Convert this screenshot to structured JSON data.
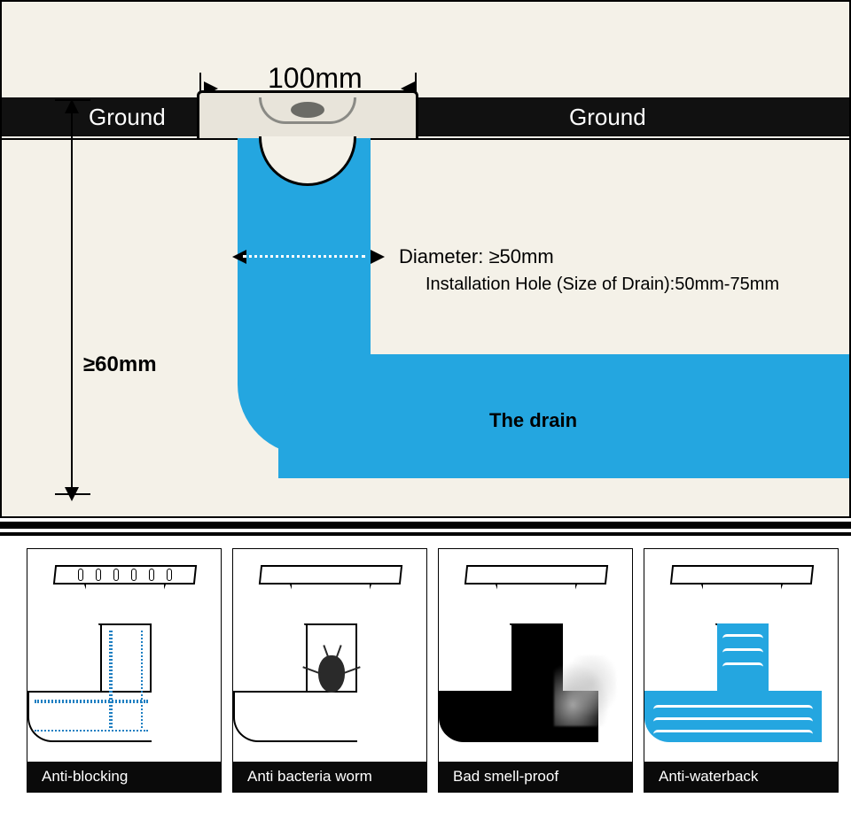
{
  "colors": {
    "background_top": "#f4f1e8",
    "ground": "#111111",
    "pipe": "#24a6e0",
    "card_bg": "#1f4a6e",
    "caption_bg": "#0a0a0a",
    "text_dark": "#000000",
    "text_light": "#ffffff"
  },
  "top_diagram": {
    "width_label": "100mm",
    "ground_label_left": "Ground",
    "ground_label_right": "Ground",
    "diameter_label": "Diameter: ≥50mm",
    "install_hole_label": "Installation Hole (Size of Drain):50mm-75mm",
    "depth_label": "≥60mm",
    "drain_label": "The drain",
    "fontsize_large": 32,
    "fontsize_med": 22,
    "fontsize_small": 20
  },
  "features": [
    {
      "caption": "Anti-blocking",
      "style": "dotted-flow"
    },
    {
      "caption": "Anti bacteria worm",
      "style": "bug"
    },
    {
      "caption": "Bad smell-proof",
      "style": "smoke"
    },
    {
      "caption": "Anti-waterback",
      "style": "waves"
    }
  ]
}
